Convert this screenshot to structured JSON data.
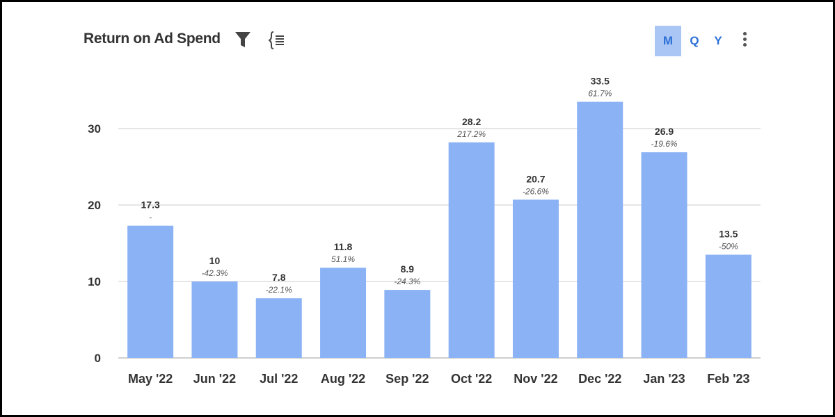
{
  "header": {
    "title": "Return on Ad Spend",
    "icons": [
      "filter-icon",
      "list-icon",
      "more-vertical-icon"
    ],
    "toggles": [
      {
        "label": "M",
        "active": true
      },
      {
        "label": "Q",
        "active": false
      },
      {
        "label": "Y",
        "active": false
      }
    ]
  },
  "colors": {
    "bar": "#8ab2f5",
    "accent": "#2b6fd6",
    "active_toggle": "#a9c6f5"
  },
  "chart_data": {
    "type": "bar",
    "title": "Return on Ad Spend",
    "xlabel": "",
    "ylabel": "",
    "categories": [
      "May '22",
      "Jun '22",
      "Jul '22",
      "Aug '22",
      "Sep '22",
      "Oct '22",
      "Nov '22",
      "Dec '22",
      "Jan '23",
      "Feb '23"
    ],
    "values": [
      17.3,
      10,
      7.8,
      11.8,
      8.9,
      28.2,
      20.7,
      33.5,
      26.9,
      13.5
    ],
    "value_labels": [
      "17.3",
      "10",
      "7.8",
      "11.8",
      "8.9",
      "28.2",
      "20.7",
      "33.5",
      "26.9",
      "13.5"
    ],
    "change_labels": [
      "-",
      "-42.3%",
      "-22.1%",
      "51.1%",
      "-24.3%",
      "217.2%",
      "-26.6%",
      "61.7%",
      "-19.6%",
      "-50%"
    ],
    "yticks": [
      0,
      10,
      20,
      30
    ],
    "ylim": [
      0,
      35
    ],
    "grid": true,
    "legend": "none"
  }
}
